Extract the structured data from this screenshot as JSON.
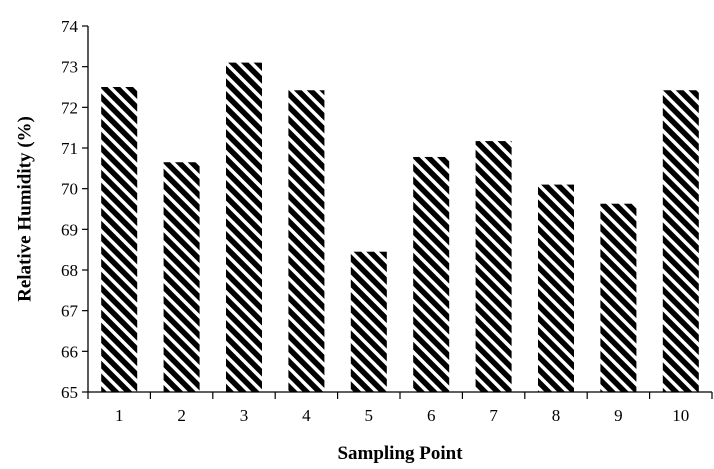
{
  "chart_data": {
    "type": "bar",
    "title": "",
    "xlabel": "Sampling Point",
    "ylabel": "Relative Humidity  (%)",
    "categories": [
      "1",
      "2",
      "3",
      "4",
      "5",
      "6",
      "7",
      "8",
      "9",
      "10"
    ],
    "values": [
      72.5,
      70.65,
      73.1,
      72.42,
      68.45,
      70.78,
      71.17,
      70.1,
      69.63,
      72.42
    ],
    "ylim": [
      65,
      74
    ],
    "yticks": [
      "65",
      "66",
      "67",
      "68",
      "69",
      "70",
      "71",
      "72",
      "73",
      "74"
    ],
    "grid": false,
    "legend": "none",
    "bar_fill": "diagonal-hatch",
    "bar_color": "#000000",
    "background": "#ffffff"
  }
}
